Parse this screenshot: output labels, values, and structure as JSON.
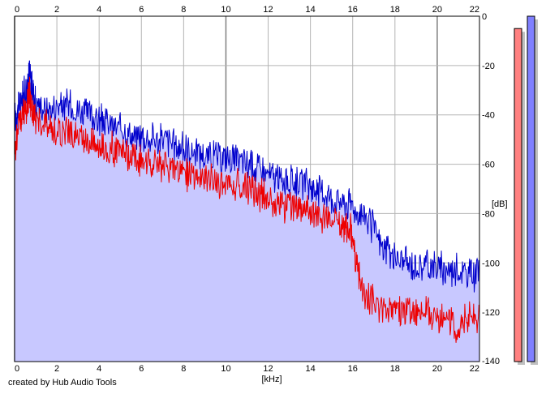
{
  "credit": "created by Hub Audio Tools",
  "chart_data": {
    "type": "area",
    "xlabel": "[kHz]",
    "ylabel": "[dB]",
    "xlim": [
      0,
      22
    ],
    "ylim": [
      -140,
      0
    ],
    "x_ticks": [
      0,
      2,
      4,
      6,
      8,
      10,
      12,
      14,
      16,
      18,
      20,
      22
    ],
    "y_ticks": [
      0,
      -20,
      -40,
      -60,
      -80,
      -100,
      -120,
      -140
    ],
    "grid": true,
    "colors": {
      "fill": "#c8c8ff",
      "blue_series": "#0000cc",
      "red_series": "#ee0000",
      "grid": "#b4b4b4",
      "major_grid": "#808080"
    },
    "series": [
      {
        "color": "#0000cc",
        "x": [
          0,
          0.2,
          0.4,
          0.6,
          0.7,
          0.8,
          1,
          1.5,
          2,
          2.5,
          3,
          3.5,
          4,
          4.5,
          5,
          5.5,
          6,
          6.5,
          7,
          7.5,
          8,
          8.5,
          9,
          9.5,
          10,
          10.5,
          11,
          11.5,
          12,
          12.5,
          13,
          13.5,
          14,
          14.5,
          15,
          15.5,
          16,
          16.5,
          17,
          17.5,
          18,
          18.5,
          19,
          19.5,
          20,
          20.5,
          21,
          21.5,
          22
        ],
        "y": [
          -40,
          -35,
          -30,
          -28,
          -20,
          -26,
          -33,
          -36,
          -35,
          -34,
          -36,
          -38,
          -40,
          -42,
          -44,
          -46,
          -47,
          -48,
          -48,
          -50,
          -52,
          -53,
          -54,
          -55,
          -55,
          -57,
          -58,
          -60,
          -62,
          -64,
          -65,
          -66,
          -67,
          -69,
          -72,
          -74,
          -75,
          -78,
          -85,
          -93,
          -96,
          -98,
          -99,
          -99,
          -100,
          -101,
          -101,
          -102,
          -103
        ]
      },
      {
        "color": "#ee0000",
        "x": [
          0,
          0.2,
          0.4,
          0.6,
          0.7,
          0.8,
          1,
          1.5,
          2,
          2.5,
          3,
          3.5,
          4,
          4.5,
          5,
          5.5,
          6,
          6.5,
          7,
          7.5,
          8,
          8.5,
          9,
          9.5,
          10,
          10.5,
          11,
          11.5,
          12,
          12.5,
          13,
          13.5,
          14,
          14.5,
          15,
          15.5,
          15.9,
          16.2,
          16.5,
          17,
          17.5,
          18,
          18.5,
          19,
          19.5,
          20,
          20.5,
          21,
          21.5,
          22
        ],
        "y": [
          -55,
          -42,
          -38,
          -35,
          -28,
          -36,
          -40,
          -43,
          -45,
          -45,
          -47,
          -48,
          -50,
          -52,
          -53,
          -55,
          -57,
          -58,
          -59,
          -60,
          -62,
          -63,
          -64,
          -65,
          -66,
          -67,
          -68,
          -70,
          -72,
          -74,
          -76,
          -77,
          -78,
          -79,
          -80,
          -82,
          -85,
          -100,
          -110,
          -114,
          -116,
          -117,
          -118,
          -118,
          -119,
          -120,
          -122,
          -124,
          -120,
          -120
        ]
      }
    ],
    "level_meters": {
      "ylim": [
        -140,
        0
      ],
      "left": {
        "color": "#ff8080",
        "value": -5
      },
      "right": {
        "color": "#8080ff",
        "value": 0
      }
    }
  }
}
